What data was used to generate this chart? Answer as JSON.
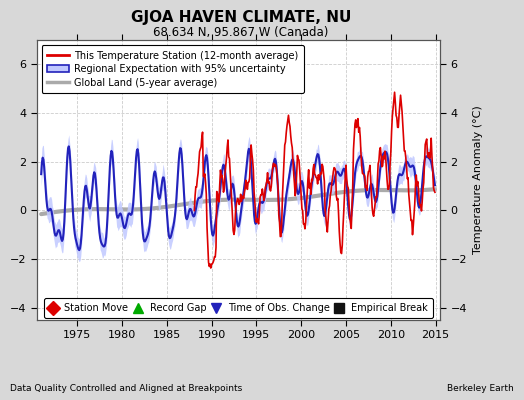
{
  "title": "GJOA HAVEN CLIMATE, NU",
  "subtitle": "68.634 N, 95.867 W (Canada)",
  "ylabel": "Temperature Anomaly (°C)",
  "footer_left": "Data Quality Controlled and Aligned at Breakpoints",
  "footer_right": "Berkeley Earth",
  "xlim": [
    1970.5,
    2015.5
  ],
  "ylim": [
    -4.5,
    7.0
  ],
  "yticks": [
    -4,
    -2,
    0,
    2,
    4,
    6
  ],
  "xticks": [
    1975,
    1980,
    1985,
    1990,
    1995,
    2000,
    2005,
    2010,
    2015
  ],
  "fig_bg_color": "#d8d8d8",
  "plot_bg_color": "#ffffff",
  "grid_color": "#cccccc",
  "station_color": "#dd0000",
  "regional_line_color": "#2222bb",
  "regional_fill_color": "#c0c8ff",
  "global_color": "#aaaaaa",
  "legend_labels": [
    "This Temperature Station (12-month average)",
    "Regional Expectation with 95% uncertainty",
    "Global Land (5-year average)"
  ],
  "marker_legend": [
    {
      "label": "Station Move",
      "color": "#dd0000",
      "marker": "D"
    },
    {
      "label": "Record Gap",
      "color": "#00aa00",
      "marker": "^"
    },
    {
      "label": "Time of Obs. Change",
      "color": "#2222bb",
      "marker": "v"
    },
    {
      "label": "Empirical Break",
      "color": "#111111",
      "marker": "s"
    }
  ]
}
